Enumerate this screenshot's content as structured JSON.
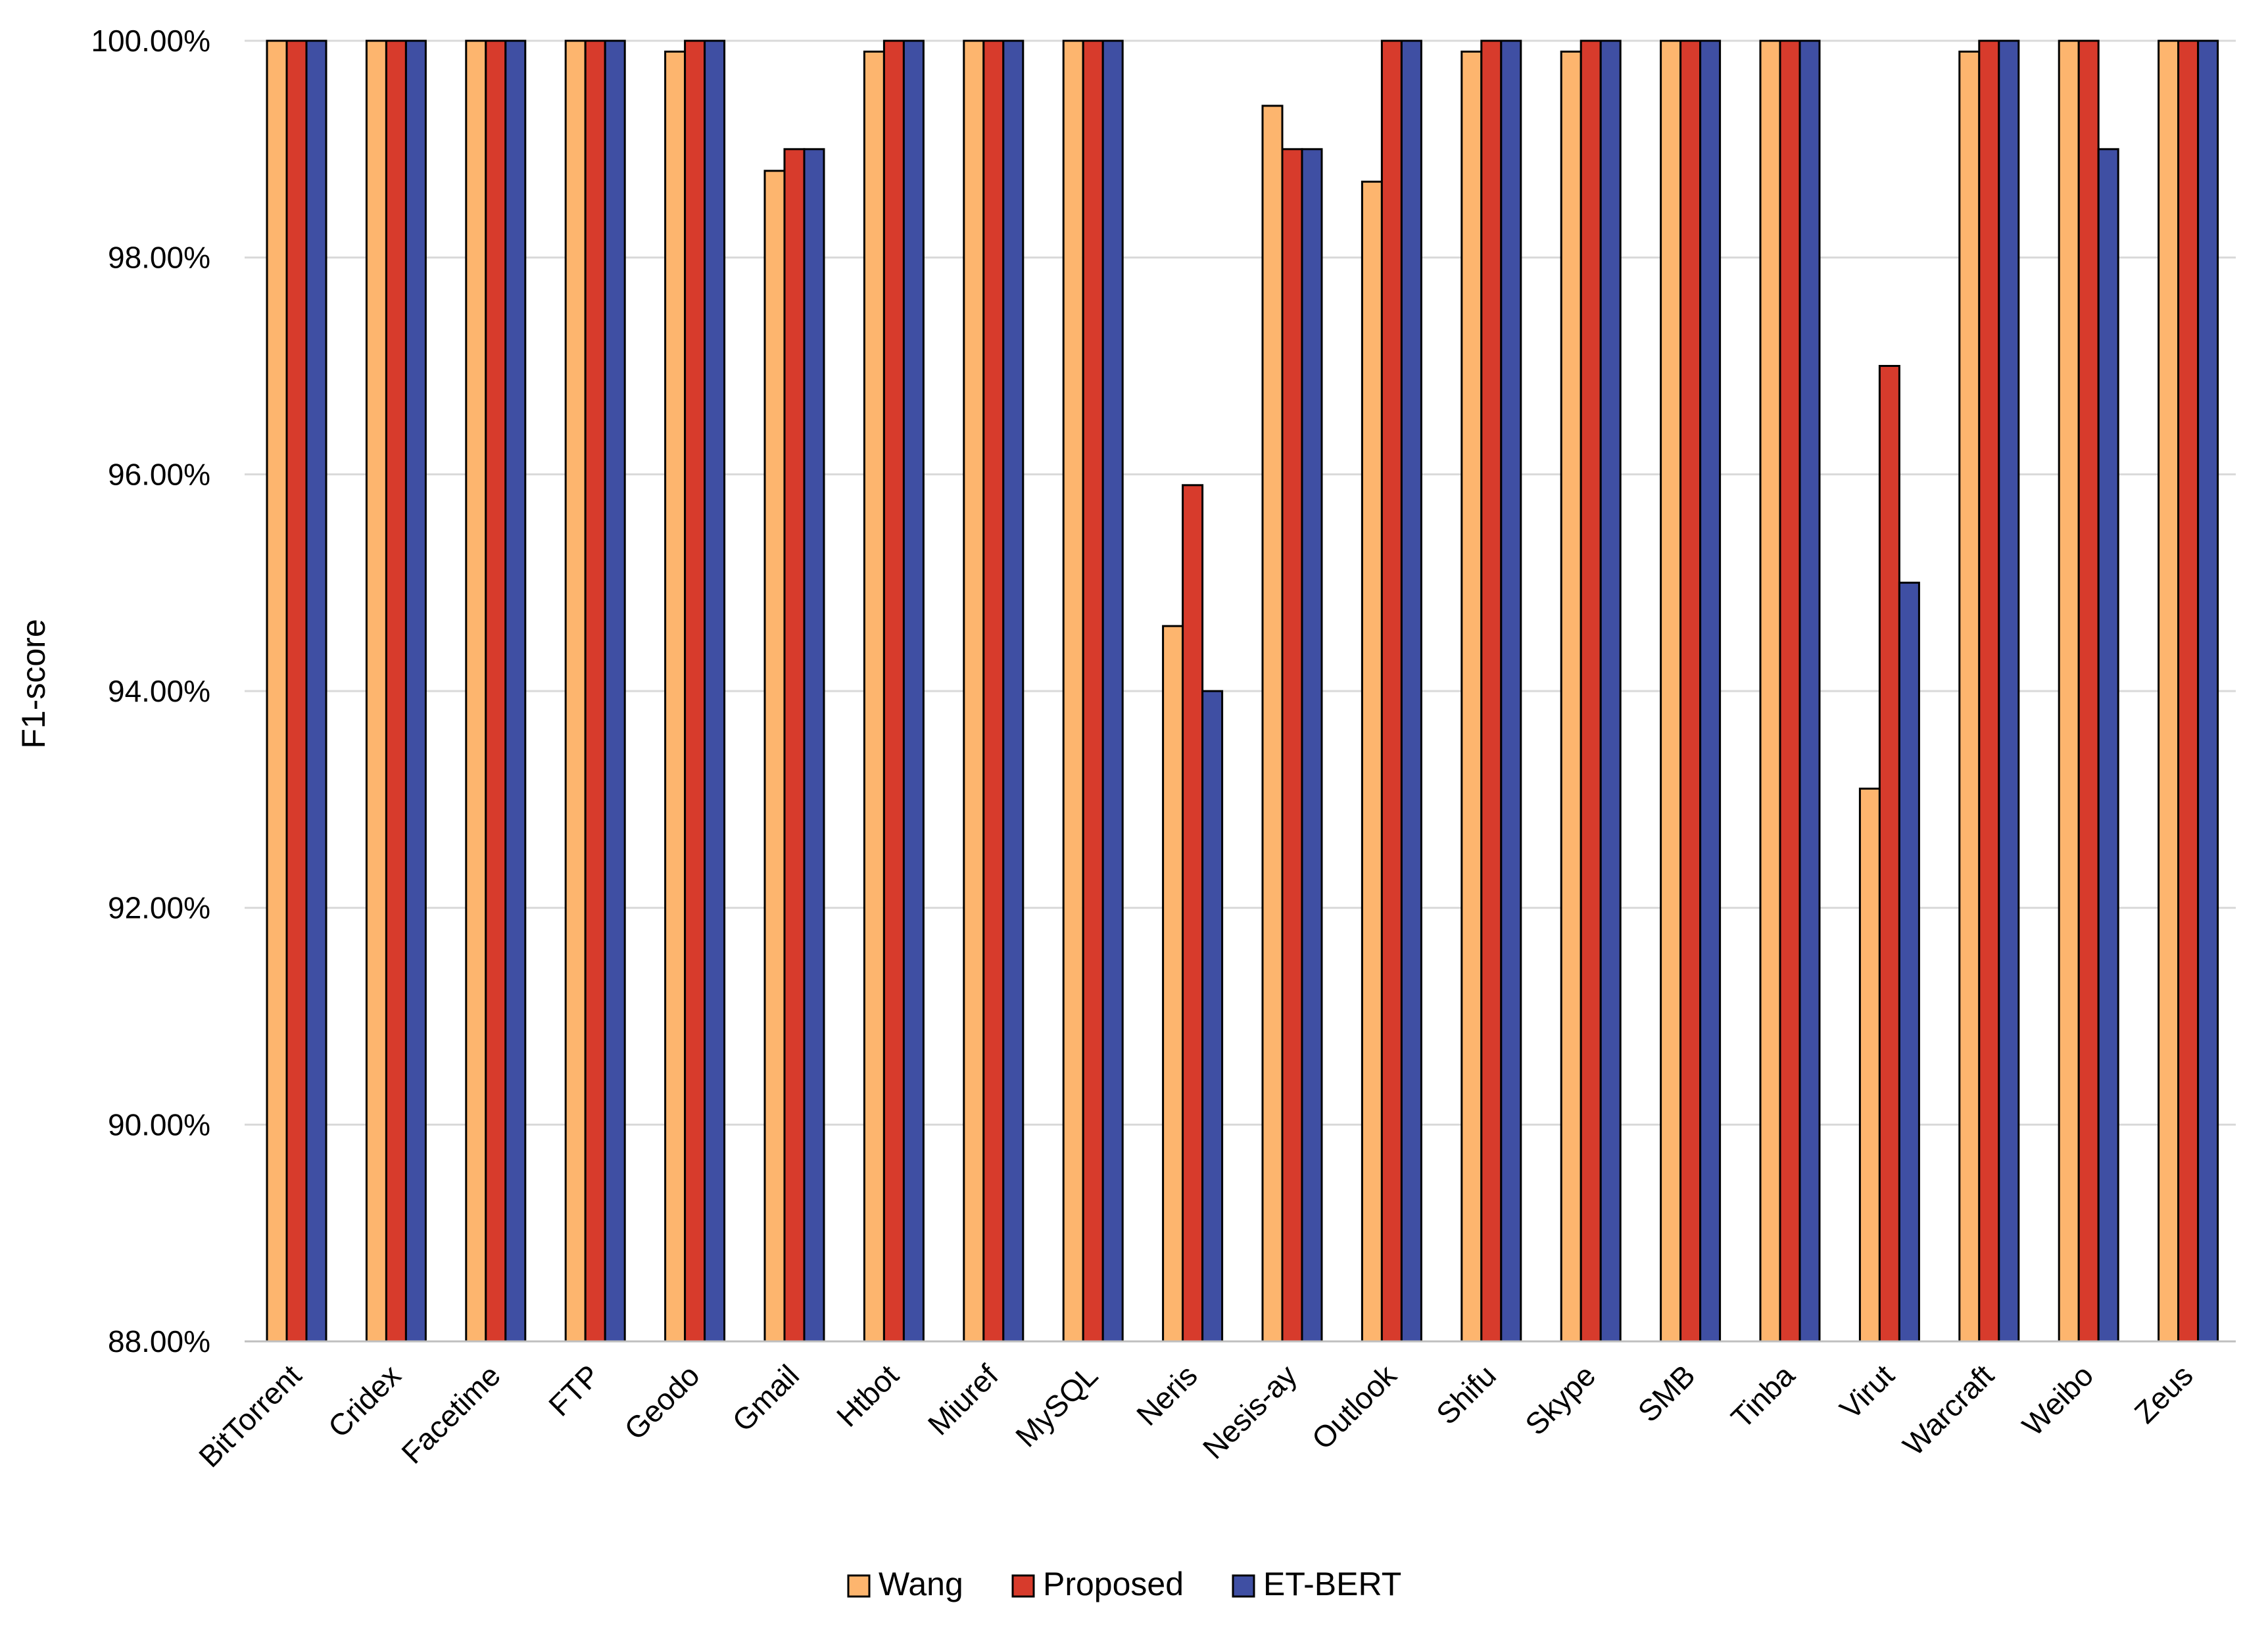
{
  "chart_data": {
    "type": "bar",
    "title": "",
    "xlabel": "",
    "ylabel": "F1-score",
    "ylim": [
      0.88,
      1.0
    ],
    "yticks": [
      0.88,
      0.9,
      0.92,
      0.94,
      0.96,
      0.98,
      1.0
    ],
    "ytick_labels": [
      "88.00%",
      "90.00%",
      "92.00%",
      "94.00%",
      "96.00%",
      "98.00%",
      "100.00%"
    ],
    "grid": true,
    "legend_position": "bottom-center",
    "categories": [
      "BitTorrent",
      "Cridex",
      "Facetime",
      "FTP",
      "Geodo",
      "Gmail",
      "Htbot",
      "Miuref",
      "MySQL",
      "Neris",
      "Nesis-ay",
      "Outlook",
      "Shifu",
      "Skype",
      "SMB",
      "Tinba",
      "Virut",
      "Warcraft",
      "Weibo",
      "Zeus"
    ],
    "series": [
      {
        "name": "Wang",
        "color": "#FDB56E",
        "values": [
          1.0,
          1.0,
          1.0,
          1.0,
          0.999,
          0.988,
          0.999,
          1.0,
          1.0,
          0.946,
          0.994,
          0.987,
          0.999,
          0.999,
          1.0,
          1.0,
          0.931,
          0.999,
          1.0,
          1.0
        ]
      },
      {
        "name": "Proposed",
        "color": "#D73B2C",
        "values": [
          1.0,
          1.0,
          1.0,
          1.0,
          1.0,
          0.99,
          1.0,
          1.0,
          1.0,
          0.959,
          0.99,
          1.0,
          1.0,
          1.0,
          1.0,
          1.0,
          0.97,
          1.0,
          1.0,
          1.0
        ]
      },
      {
        "name": "ET-BERT",
        "color": "#3F4FA3",
        "values": [
          1.0,
          1.0,
          1.0,
          1.0,
          1.0,
          0.99,
          1.0,
          1.0,
          1.0,
          0.94,
          0.99,
          1.0,
          1.0,
          1.0,
          1.0,
          1.0,
          0.95,
          1.0,
          0.99,
          1.0
        ]
      }
    ]
  }
}
